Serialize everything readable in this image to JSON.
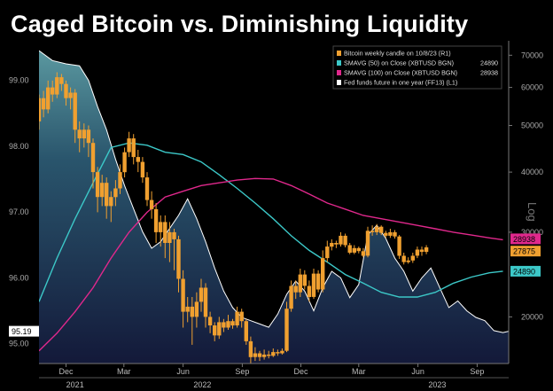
{
  "chart_data": {
    "type": "line",
    "title": "Caged Bitcoin vs. Diminishing Liquidity",
    "x_ticks": [
      {
        "label": "Dec",
        "date": "2020-12-01"
      },
      {
        "label": "Mar",
        "date": "2021-03-01"
      },
      {
        "label": "Jun",
        "date": "2021-06-01"
      },
      {
        "label": "Sep",
        "date": "2021-09-01"
      },
      {
        "label": "Dec",
        "date": "2021-12-01"
      },
      {
        "label": "Mar",
        "date": "2022-03-01"
      },
      {
        "label": "Jun",
        "date": "2022-06-01"
      },
      {
        "label": "Sep",
        "date": "2022-09-01"
      }
    ],
    "year_labels": [
      {
        "label": "2021",
        "date": "2020-12-15"
      },
      {
        "label": "2022",
        "date": "2021-07-01"
      },
      {
        "label": "2023",
        "date": "2022-07-01"
      }
    ],
    "x_range": [
      "2020-10-20",
      "2022-10-20"
    ],
    "left_axis": {
      "ticks": [
        "99.00",
        "98.00",
        "97.00",
        "96.00",
        "95.00"
      ],
      "range": [
        94.7,
        99.6
      ]
    },
    "right_axis": {
      "label": "Log",
      "ticks": [
        "70000",
        "60000",
        "50000",
        "40000",
        "30000",
        "20000"
      ],
      "scale": "log",
      "range": [
        16000,
        75000
      ]
    },
    "last_values": {
      "fed_funds": "95.19",
      "candle": "27875",
      "smavg50": "24890",
      "smavg100": "28938"
    },
    "legend": {
      "placement": "top-right",
      "entries": [
        {
          "label": "Bitcoin weekly candle on 10/8/23 (R1)",
          "value": ""
        },
        {
          "label": "SMAVG (50)  on Close (XBTUSD BGN)",
          "value": "24890"
        },
        {
          "label": "SMAVG (100)  on Close (XBTUSD BGN)",
          "value": "28938"
        },
        {
          "label": "Fed funds future in one year (FF13) (L1)",
          "value": ""
        }
      ]
    },
    "series": [
      {
        "name": "Fed funds future in one year (FF13) (L1)",
        "axis": "left",
        "color": "#ffffff",
        "points": [
          [
            "2020-10-20",
            99.45
          ],
          [
            "2020-11-10",
            99.3
          ],
          [
            "2020-12-01",
            99.25
          ],
          [
            "2020-12-22",
            99.22
          ],
          [
            "2021-01-05",
            99.0
          ],
          [
            "2021-01-19",
            98.6
          ],
          [
            "2021-02-02",
            98.25
          ],
          [
            "2021-02-16",
            97.8
          ],
          [
            "2021-03-02",
            97.4
          ],
          [
            "2021-03-16",
            97.05
          ],
          [
            "2021-03-30",
            96.7
          ],
          [
            "2021-04-13",
            96.45
          ],
          [
            "2021-04-27",
            96.55
          ],
          [
            "2021-05-11",
            96.75
          ],
          [
            "2021-05-25",
            96.95
          ],
          [
            "2021-06-08",
            97.2
          ],
          [
            "2021-06-22",
            96.9
          ],
          [
            "2021-07-06",
            96.55
          ],
          [
            "2021-07-20",
            96.15
          ],
          [
            "2021-08-03",
            95.8
          ],
          [
            "2021-08-17",
            95.55
          ],
          [
            "2021-08-31",
            95.4
          ],
          [
            "2021-09-14",
            95.35
          ],
          [
            "2021-09-28",
            95.3
          ],
          [
            "2021-10-12",
            95.25
          ],
          [
            "2021-10-26",
            95.45
          ],
          [
            "2021-11-09",
            95.75
          ],
          [
            "2021-11-23",
            95.95
          ],
          [
            "2021-12-07",
            95.8
          ],
          [
            "2021-12-21",
            95.5
          ],
          [
            "2022-01-04",
            95.85
          ],
          [
            "2022-01-18",
            96.1
          ],
          [
            "2022-02-01",
            96.0
          ],
          [
            "2022-02-15",
            95.7
          ],
          [
            "2022-03-01",
            95.9
          ],
          [
            "2022-03-15",
            96.65
          ],
          [
            "2022-03-29",
            96.8
          ],
          [
            "2022-04-12",
            96.6
          ],
          [
            "2022-04-26",
            96.3
          ],
          [
            "2022-05-10",
            96.1
          ],
          [
            "2022-05-24",
            95.8
          ],
          [
            "2022-06-07",
            96.0
          ],
          [
            "2022-06-21",
            96.15
          ],
          [
            "2022-07-05",
            95.85
          ],
          [
            "2022-07-19",
            95.55
          ],
          [
            "2022-08-02",
            95.65
          ],
          [
            "2022-08-16",
            95.5
          ],
          [
            "2022-08-30",
            95.4
          ],
          [
            "2022-09-13",
            95.35
          ],
          [
            "2022-09-27",
            95.2
          ],
          [
            "2022-10-11",
            95.17
          ],
          [
            "2022-10-20",
            95.19
          ]
        ]
      },
      {
        "name": "SMAVG (50)  on Close (XBTUSD BGN)",
        "axis": "right",
        "color": "#3cc8c8",
        "points": [
          [
            "2020-10-20",
            21500
          ],
          [
            "2020-11-17",
            26500
          ],
          [
            "2020-12-15",
            32000
          ],
          [
            "2021-01-12",
            38000
          ],
          [
            "2021-02-09",
            45000
          ],
          [
            "2021-03-09",
            46000
          ],
          [
            "2021-04-06",
            45500
          ],
          [
            "2021-05-04",
            44000
          ],
          [
            "2021-06-01",
            43500
          ],
          [
            "2021-06-29",
            42000
          ],
          [
            "2021-07-27",
            39500
          ],
          [
            "2021-08-24",
            37000
          ],
          [
            "2021-09-21",
            34500
          ],
          [
            "2021-10-19",
            32000
          ],
          [
            "2021-11-16",
            29500
          ],
          [
            "2021-12-14",
            27500
          ],
          [
            "2022-01-11",
            26000
          ],
          [
            "2022-02-08",
            24500
          ],
          [
            "2022-03-08",
            23500
          ],
          [
            "2022-04-05",
            22500
          ],
          [
            "2022-05-03",
            22000
          ],
          [
            "2022-05-31",
            22000
          ],
          [
            "2022-06-28",
            22500
          ],
          [
            "2022-07-26",
            23500
          ],
          [
            "2022-08-23",
            24200
          ],
          [
            "2022-09-20",
            24700
          ],
          [
            "2022-10-11",
            24890
          ]
        ]
      },
      {
        "name": "SMAVG (100)  on Close (XBTUSD BGN)",
        "axis": "right",
        "color": "#e0288c",
        "points": [
          [
            "2020-10-20",
            17000
          ],
          [
            "2020-11-17",
            18500
          ],
          [
            "2020-12-15",
            20500
          ],
          [
            "2021-01-12",
            23000
          ],
          [
            "2021-02-09",
            26500
          ],
          [
            "2021-03-09",
            30000
          ],
          [
            "2021-04-06",
            33000
          ],
          [
            "2021-05-04",
            35500
          ],
          [
            "2021-06-01",
            36500
          ],
          [
            "2021-06-29",
            37500
          ],
          [
            "2021-07-27",
            38000
          ],
          [
            "2021-08-24",
            38500
          ],
          [
            "2021-09-21",
            38800
          ],
          [
            "2021-10-19",
            38700
          ],
          [
            "2021-11-16",
            37500
          ],
          [
            "2021-12-14",
            36000
          ],
          [
            "2022-01-11",
            34500
          ],
          [
            "2022-02-08",
            33500
          ],
          [
            "2022-03-08",
            32500
          ],
          [
            "2022-04-05",
            32000
          ],
          [
            "2022-05-03",
            31500
          ],
          [
            "2022-05-31",
            31000
          ],
          [
            "2022-06-28",
            30500
          ],
          [
            "2022-07-26",
            30000
          ],
          [
            "2022-08-23",
            29600
          ],
          [
            "2022-09-20",
            29200
          ],
          [
            "2022-10-11",
            28938
          ]
        ]
      }
    ],
    "candles": {
      "name": "Bitcoin weekly candle on 10/8/23 (R1)",
      "axis": "right",
      "color": "#f0a030",
      "bars": [
        [
          "2020-10-20",
          51000,
          57000,
          49000,
          58000
        ],
        [
          "2020-10-27",
          57000,
          54000,
          52000,
          59000
        ],
        [
          "2020-11-03",
          54000,
          60000,
          53000,
          62000
        ],
        [
          "2020-11-10",
          60000,
          58000,
          56000,
          62000
        ],
        [
          "2020-11-17",
          58000,
          63000,
          57000,
          64500
        ],
        [
          "2020-11-24",
          63000,
          61000,
          59000,
          64000
        ],
        [
          "2020-12-01",
          61000,
          57000,
          55000,
          62000
        ],
        [
          "2020-12-08",
          57000,
          58500,
          54000,
          60000
        ],
        [
          "2020-12-15",
          58500,
          49000,
          46000,
          59500
        ],
        [
          "2020-12-22",
          49000,
          47000,
          44000,
          51000
        ],
        [
          "2020-12-29",
          47000,
          49000,
          45000,
          50500
        ],
        [
          "2021-01-05",
          49000,
          46000,
          43000,
          50000
        ],
        [
          "2021-01-12",
          46000,
          40000,
          37000,
          47000
        ],
        [
          "2021-01-19",
          40000,
          35500,
          33000,
          41000
        ],
        [
          "2021-01-26",
          35500,
          38000,
          34000,
          39500
        ],
        [
          "2021-02-02",
          38000,
          34000,
          32000,
          39000
        ],
        [
          "2021-02-09",
          34000,
          35500,
          31500,
          36500
        ],
        [
          "2021-02-16",
          35500,
          37000,
          34000,
          38500
        ],
        [
          "2021-02-23",
          37000,
          40000,
          36000,
          41500
        ],
        [
          "2021-03-02",
          40000,
          44000,
          39000,
          45000
        ],
        [
          "2021-03-09",
          44000,
          47000,
          43000,
          48500
        ],
        [
          "2021-03-16",
          47000,
          43000,
          41500,
          48000
        ],
        [
          "2021-03-23",
          43000,
          42000,
          40000,
          44500
        ],
        [
          "2021-03-30",
          42000,
          39000,
          38000,
          43000
        ],
        [
          "2021-04-06",
          39000,
          35000,
          34000,
          40000
        ],
        [
          "2021-04-13",
          35000,
          33500,
          32000,
          36500
        ],
        [
          "2021-04-20",
          33500,
          30000,
          28500,
          34500
        ],
        [
          "2021-04-27",
          30000,
          31500,
          28000,
          32500
        ],
        [
          "2021-05-04",
          31500,
          28500,
          26500,
          32500
        ],
        [
          "2021-05-11",
          28500,
          30000,
          26000,
          31500
        ],
        [
          "2021-05-18",
          30000,
          29000,
          25000,
          30500
        ],
        [
          "2021-05-25",
          29000,
          24000,
          22500,
          29500
        ],
        [
          "2021-06-01",
          24000,
          20500,
          19000,
          25000
        ],
        [
          "2021-06-08",
          20500,
          21000,
          19500,
          22000
        ],
        [
          "2021-06-15",
          21000,
          20000,
          17500,
          22000
        ],
        [
          "2021-06-22",
          20000,
          21500,
          19000,
          22500
        ],
        [
          "2021-06-29",
          21500,
          23000,
          20500,
          24000
        ],
        [
          "2021-07-06",
          23000,
          20000,
          19000,
          23500
        ],
        [
          "2021-07-13",
          20000,
          19200,
          18500,
          20500
        ],
        [
          "2021-07-20",
          19200,
          18300,
          17800,
          19500
        ],
        [
          "2021-07-27",
          18300,
          19500,
          18000,
          20000
        ],
        [
          "2021-08-03",
          19500,
          19000,
          18600,
          19800
        ],
        [
          "2021-08-10",
          19000,
          19600,
          18800,
          20200
        ],
        [
          "2021-08-17",
          19600,
          19200,
          18900,
          19800
        ],
        [
          "2021-08-24",
          19200,
          20500,
          19000,
          21000
        ],
        [
          "2021-08-31",
          20500,
          19600,
          19000,
          20800
        ],
        [
          "2021-09-07",
          19600,
          17800,
          17500,
          19800
        ],
        [
          "2021-09-14",
          17800,
          16500,
          16000,
          18200
        ],
        [
          "2021-09-21",
          16500,
          16800,
          16200,
          17300
        ],
        [
          "2021-09-28",
          16800,
          16500,
          16200,
          17000
        ],
        [
          "2021-10-05",
          16500,
          16700,
          16300,
          17100
        ],
        [
          "2021-10-12",
          16700,
          16600,
          16400,
          17000
        ],
        [
          "2021-10-19",
          16600,
          16900,
          16500,
          17200
        ],
        [
          "2021-10-26",
          16900,
          16800,
          16600,
          17100
        ],
        [
          "2021-11-02",
          16800,
          17000,
          16700,
          17200
        ],
        [
          "2021-11-09",
          17000,
          20800,
          16900,
          21500
        ],
        [
          "2021-11-16",
          20800,
          23200,
          20500,
          23800
        ],
        [
          "2021-11-23",
          23200,
          22500,
          21800,
          23800
        ],
        [
          "2021-11-30",
          22500,
          24500,
          22000,
          25200
        ],
        [
          "2021-12-07",
          24500,
          23200,
          22800,
          25000
        ],
        [
          "2021-12-14",
          23200,
          22000,
          21500,
          23800
        ],
        [
          "2021-12-21",
          22000,
          24600,
          21800,
          25200
        ],
        [
          "2021-12-28",
          24600,
          22800,
          22500,
          25000
        ],
        [
          "2022-01-04",
          22800,
          26500,
          22500,
          27500
        ],
        [
          "2022-01-11",
          26500,
          28000,
          26000,
          28800
        ],
        [
          "2022-01-18",
          28000,
          28500,
          27500,
          29000
        ],
        [
          "2022-01-25",
          28500,
          28300,
          27800,
          28800
        ],
        [
          "2022-02-01",
          28300,
          29500,
          28000,
          30000
        ],
        [
          "2022-02-08",
          29500,
          28200,
          27900,
          29800
        ],
        [
          "2022-02-15",
          28200,
          27200,
          27000,
          28500
        ],
        [
          "2022-02-22",
          27200,
          27800,
          27000,
          28200
        ],
        [
          "2022-03-01",
          27800,
          27400,
          27100,
          28000
        ],
        [
          "2022-03-08",
          27400,
          26800,
          26600,
          27800
        ],
        [
          "2022-03-15",
          26800,
          30200,
          26600,
          30800
        ],
        [
          "2022-03-22",
          30200,
          30000,
          29500,
          31000
        ],
        [
          "2022-03-29",
          30000,
          30800,
          29600,
          31200
        ],
        [
          "2022-04-05",
          30800,
          29900,
          29600,
          31000
        ],
        [
          "2022-04-12",
          29900,
          29500,
          29200,
          30200
        ],
        [
          "2022-04-19",
          29500,
          30000,
          29200,
          30500
        ],
        [
          "2022-04-26",
          30000,
          29400,
          29100,
          30300
        ],
        [
          "2022-05-03",
          29400,
          26800,
          26400,
          29600
        ],
        [
          "2022-05-10",
          26800,
          26000,
          25700,
          27200
        ],
        [
          "2022-05-17",
          26000,
          26200,
          25800,
          26600
        ],
        [
          "2022-05-24",
          26200,
          26800,
          25900,
          27200
        ],
        [
          "2022-05-31",
          26800,
          27600,
          26500,
          28000
        ],
        [
          "2022-06-07",
          27600,
          27300,
          26800,
          28000
        ],
        [
          "2022-06-14",
          27300,
          27900,
          27000,
          28200
        ]
      ]
    }
  }
}
